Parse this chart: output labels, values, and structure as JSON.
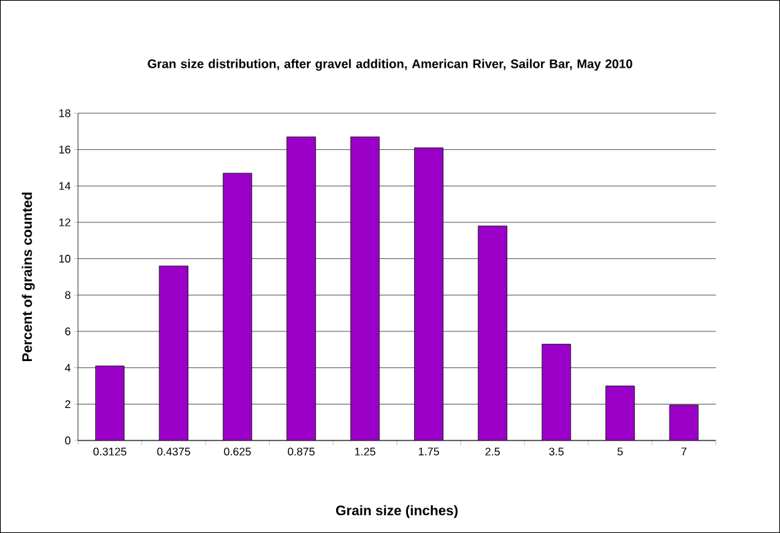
{
  "chart_data": {
    "type": "bar",
    "title": "Gran size distribution, after gravel addition, American River, Sailor Bar, May 2010",
    "xlabel": "Grain size (inches)",
    "ylabel": "Percent of grains counted",
    "categories": [
      "0.3125",
      "0.4375",
      "0.625",
      "0.875",
      "1.25",
      "1.75",
      "2.5",
      "3.5",
      "5",
      "7"
    ],
    "values": [
      4.1,
      9.6,
      14.7,
      16.7,
      16.7,
      16.1,
      11.8,
      5.3,
      3.0,
      1.95
    ],
    "color": "#9a00c8",
    "ylim": [
      0,
      18
    ],
    "yticks": [
      0,
      2,
      4,
      6,
      8,
      10,
      12,
      14,
      16,
      18
    ],
    "grid": "y"
  }
}
